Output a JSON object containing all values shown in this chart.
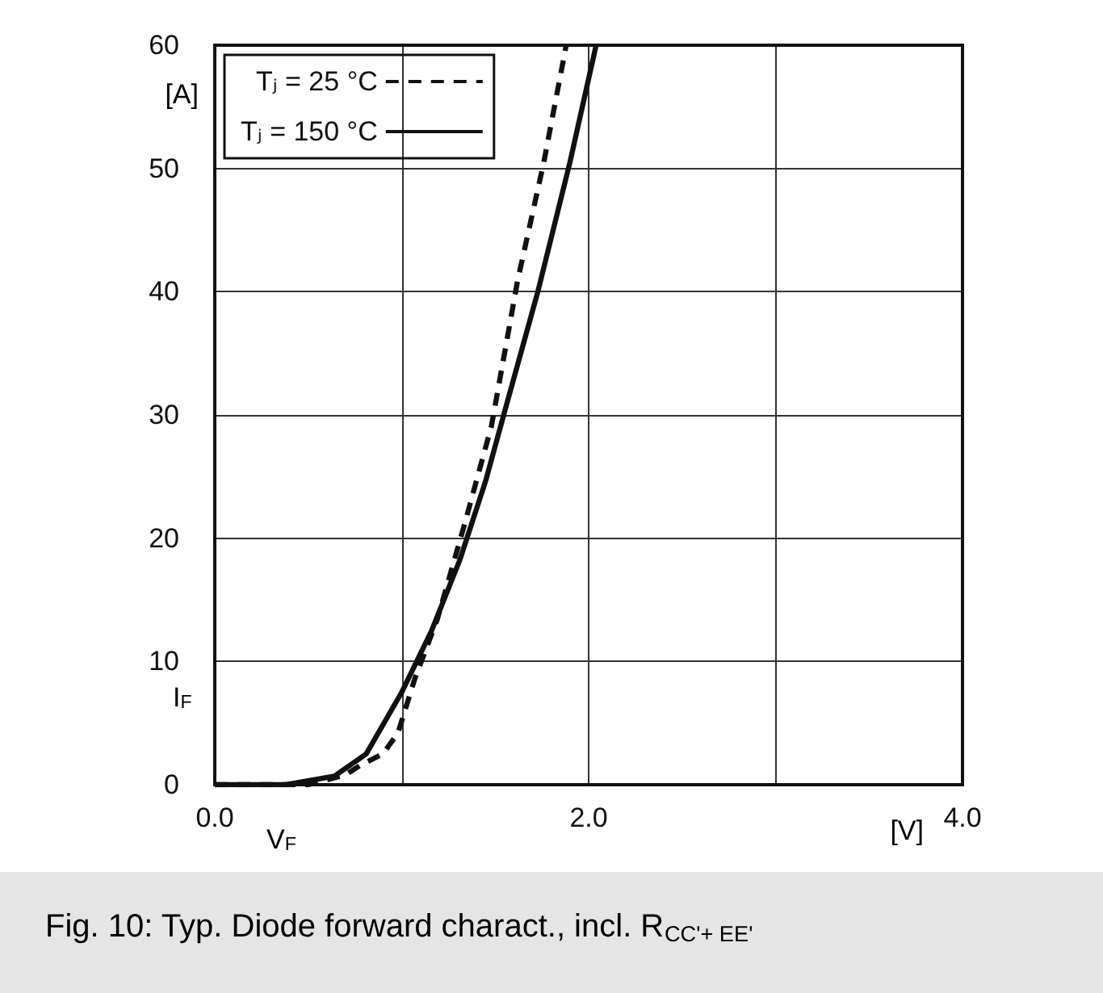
{
  "chart_data": {
    "type": "line",
    "title": "Fig. 10: Typ. Diode forward charact., incl. R$_{CC'+ EE'}$",
    "xlabel": "V$_{F}$",
    "ylabel": "I$_{F}$",
    "annotations": [
      "[V]",
      "[A]"
    ],
    "xlim": [
      0,
      4
    ],
    "xticks": [
      {
        "value": 0,
        "label": "0.0"
      },
      {
        "value": 1,
        "label": null
      },
      {
        "value": 2,
        "label": "2.0"
      },
      {
        "value": 3,
        "label": null
      },
      {
        "value": 4,
        "label": "4.0"
      }
    ],
    "ylim": [
      0,
      60
    ],
    "yticks": [
      0,
      10,
      20,
      30,
      40,
      50,
      60
    ],
    "grid": true,
    "legend": "top left",
    "marker": "none",
    "series": [
      {
        "name": "Tⱼ = 25 °C",
        "color": "#111111",
        "line_style": "dashed",
        "x": [
          0,
          0.5,
          0.7,
          0.78,
          0.9,
          0.98,
          1.07,
          1.19,
          1.33,
          1.48,
          1.62,
          1.76,
          1.88
        ],
        "values": [
          0,
          0,
          0.8,
          1.6,
          2.5,
          4.2,
          8.6,
          13.4,
          20.8,
          29.1,
          40.9,
          50.5,
          60
        ]
      },
      {
        "name": "Tⱼ = 150 °C",
        "color": "#111111",
        "line_style": "solid",
        "x": [
          0,
          0.38,
          0.64,
          0.81,
          1.0,
          1.16,
          1.31,
          1.45,
          1.56,
          1.73,
          1.9,
          2.04
        ],
        "values": [
          0,
          0,
          0.7,
          2.5,
          7.5,
          12.5,
          18.2,
          24.7,
          30.8,
          40.1,
          50.5,
          60
        ]
      }
    ]
  }
}
